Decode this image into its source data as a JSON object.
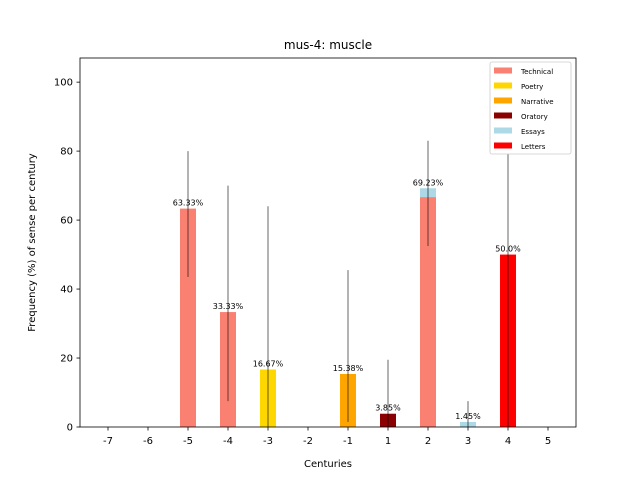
{
  "chart_data": {
    "type": "bar",
    "title": "mus-4: muscle",
    "xlabel": "Centuries",
    "ylabel": "Frequency (%) of sense per century",
    "categories": [
      "-7",
      "-6",
      "-5",
      "-4",
      "-3",
      "-2",
      "-1",
      "1",
      "2",
      "3",
      "4",
      "5"
    ],
    "ylim": [
      0,
      107
    ],
    "yticks": [
      0,
      20,
      40,
      60,
      80,
      100
    ],
    "stacked": true,
    "legend_position": "top-right",
    "grid": false,
    "series": [
      {
        "name": "Technical",
        "color": "#fa8072",
        "values": [
          0,
          0,
          63.33,
          33.33,
          0,
          0,
          0,
          0,
          66.67,
          0,
          0,
          0
        ]
      },
      {
        "name": "Poetry",
        "color": "#ffd700",
        "values": [
          0,
          0,
          0,
          0,
          16.67,
          0,
          0,
          0,
          0,
          0,
          0,
          0
        ]
      },
      {
        "name": "Narrative",
        "color": "#ffa500",
        "values": [
          0,
          0,
          0,
          0,
          0,
          0,
          15.38,
          0,
          0,
          0,
          0,
          0
        ]
      },
      {
        "name": "Oratory",
        "color": "#8b0000",
        "values": [
          0,
          0,
          0,
          0,
          0,
          0,
          0,
          3.85,
          0,
          0,
          0,
          0
        ]
      },
      {
        "name": "Essays",
        "color": "#add8e6",
        "values": [
          0,
          0,
          0,
          0,
          0,
          0,
          0,
          0,
          2.56,
          1.45,
          0,
          0
        ]
      },
      {
        "name": "Letters",
        "color": "#ff0000",
        "values": [
          0,
          0,
          0,
          0,
          0,
          0,
          0,
          0,
          0,
          0,
          50.0,
          0
        ]
      }
    ],
    "totals": [
      {
        "category": "-5",
        "value": 63.33,
        "label": "63.33%"
      },
      {
        "category": "-4",
        "value": 33.33,
        "label": "33.33%"
      },
      {
        "category": "-3",
        "value": 16.67,
        "label": "16.67%"
      },
      {
        "category": "-1",
        "value": 15.38,
        "label": "15.38%"
      },
      {
        "category": "1",
        "value": 3.85,
        "label": "3.85%"
      },
      {
        "category": "2",
        "value": 69.23,
        "label": "69.23%"
      },
      {
        "category": "3",
        "value": 1.45,
        "label": "1.45%"
      },
      {
        "category": "4",
        "value": 50.0,
        "label": "50.0%"
      }
    ],
    "error_bars": [
      {
        "category": "-5",
        "low": 43.5,
        "high": 80.0
      },
      {
        "category": "-4",
        "low": 7.5,
        "high": 70.0
      },
      {
        "category": "-3",
        "low": 0,
        "high": 64.0
      },
      {
        "category": "-1",
        "low": 1.5,
        "high": 45.5
      },
      {
        "category": "1",
        "low": 0,
        "high": 19.5
      },
      {
        "category": "2",
        "low": 52.5,
        "high": 83.0
      },
      {
        "category": "3",
        "low": 0,
        "high": 7.5
      },
      {
        "category": "4",
        "low": 0,
        "high": 80.0
      }
    ]
  }
}
